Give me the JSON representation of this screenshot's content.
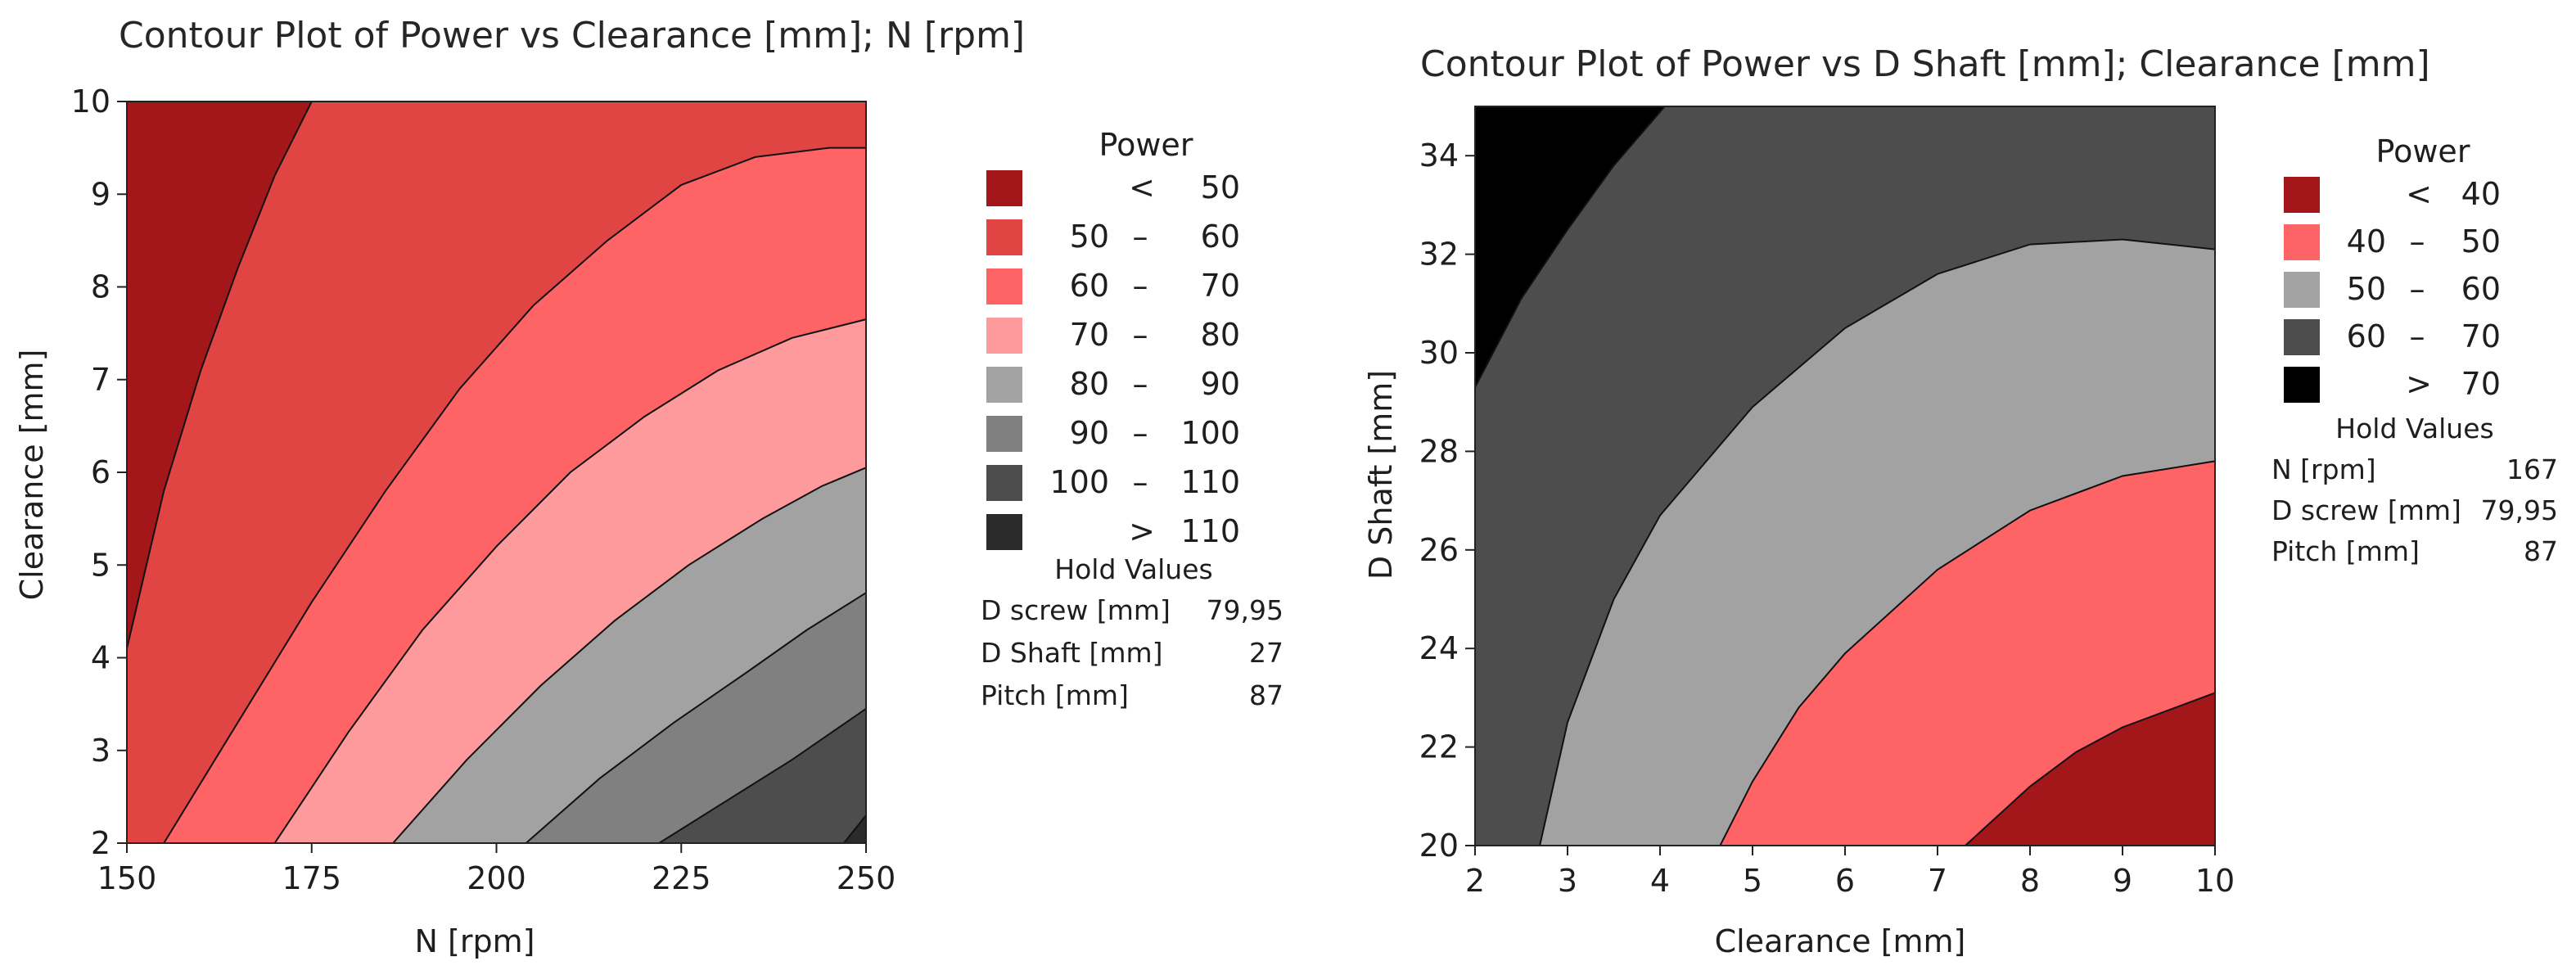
{
  "chart_data": [
    {
      "type": "contour",
      "title": "Contour Plot of Power vs Clearance [mm]; N [rpm]",
      "xlabel": "N [rpm]",
      "ylabel": "Clearance [mm]",
      "xlim": [
        150,
        250
      ],
      "ylim": [
        2,
        10
      ],
      "xticks": [
        "150",
        "175",
        "200",
        "225",
        "250"
      ],
      "yticks": [
        "2",
        "3",
        "4",
        "5",
        "6",
        "7",
        "8",
        "9",
        "10"
      ],
      "legend": {
        "title": "Power",
        "levels": [
          {
            "label": "<  50",
            "op": "<",
            "lo": "",
            "hi": "50",
            "color": "#a31619"
          },
          {
            "label": "50 – 60",
            "op": "",
            "lo": "50",
            "hi": "60",
            "color": "#e04544"
          },
          {
            "label": "60 – 70",
            "op": "",
            "lo": "60",
            "hi": "70",
            "color": "#fe6366"
          },
          {
            "label": "70 – 80",
            "op": "",
            "lo": "70",
            "hi": "80",
            "color": "#fe9a9c"
          },
          {
            "label": "80 – 90",
            "op": "",
            "lo": "80",
            "hi": "90",
            "color": "#a2a2a2"
          },
          {
            "label": "90 – 100",
            "op": "",
            "lo": "90",
            "hi": "100",
            "color": "#808080"
          },
          {
            "label": "100 – 110",
            "op": "",
            "lo": "100",
            "hi": "110",
            "color": "#4d4d4d"
          },
          {
            "label": ">  110",
            "op": ">",
            "lo": "",
            "hi": "110",
            "color": "#2b2b2b"
          }
        ]
      },
      "hold_values": {
        "title": "Hold Values",
        "rows": [
          {
            "name": "D screw [mm]",
            "value": "79,95"
          },
          {
            "name": "D Shaft [mm]",
            "value": "27"
          },
          {
            "name": "Pitch [mm]",
            "value": "87"
          }
        ]
      },
      "contours": [
        {
          "level": 50,
          "points": [
            [
              150,
              4.1
            ],
            [
              155,
              5.8
            ],
            [
              160,
              7.1
            ],
            [
              165,
              8.2
            ],
            [
              170,
              9.2
            ],
            [
              175,
              10
            ]
          ]
        },
        {
          "level": 60,
          "points": [
            [
              155,
              2
            ],
            [
              165,
              3.3
            ],
            [
              175,
              4.6
            ],
            [
              185,
              5.8
            ],
            [
              195,
              6.9
            ],
            [
              205,
              7.8
            ],
            [
              215,
              8.5
            ],
            [
              225,
              9.1
            ],
            [
              235,
              9.4
            ],
            [
              245,
              9.5
            ],
            [
              250,
              9.5
            ]
          ]
        },
        {
          "level": 70,
          "points": [
            [
              170,
              2
            ],
            [
              180,
              3.2
            ],
            [
              190,
              4.3
            ],
            [
              200,
              5.2
            ],
            [
              210,
              6
            ],
            [
              220,
              6.6
            ],
            [
              230,
              7.1
            ],
            [
              240,
              7.45
            ],
            [
              250,
              7.65
            ]
          ]
        },
        {
          "level": 80,
          "points": [
            [
              186,
              2
            ],
            [
              196,
              2.9
            ],
            [
              206,
              3.7
            ],
            [
              216,
              4.4
            ],
            [
              226,
              5
            ],
            [
              236,
              5.5
            ],
            [
              244,
              5.85
            ],
            [
              250,
              6.05
            ]
          ]
        },
        {
          "level": 90,
          "points": [
            [
              204,
              2
            ],
            [
              214,
              2.7
            ],
            [
              224,
              3.3
            ],
            [
              234,
              3.85
            ],
            [
              242,
              4.3
            ],
            [
              250,
              4.7
            ]
          ]
        },
        {
          "level": 100,
          "points": [
            [
              222,
              2
            ],
            [
              232,
              2.5
            ],
            [
              240,
              2.9
            ],
            [
              250,
              3.45
            ]
          ]
        },
        {
          "level": 110,
          "points": [
            [
              247,
              2
            ],
            [
              250,
              2.3
            ]
          ]
        }
      ]
    },
    {
      "type": "contour",
      "title": "Contour Plot of Power vs D Shaft [mm]; Clearance [mm]",
      "xlabel": "Clearance [mm]",
      "ylabel": "D Shaft [mm]",
      "xlim": [
        2,
        10
      ],
      "ylim": [
        20,
        35
      ],
      "xticks": [
        "2",
        "3",
        "4",
        "5",
        "6",
        "7",
        "8",
        "9",
        "10"
      ],
      "yticks": [
        "20",
        "22",
        "24",
        "26",
        "28",
        "30",
        "32",
        "34"
      ],
      "legend": {
        "title": "Power",
        "levels": [
          {
            "label": "<  40",
            "op": "<",
            "lo": "",
            "hi": "40",
            "color": "#a31619"
          },
          {
            "label": "40 – 50",
            "op": "",
            "lo": "40",
            "hi": "50",
            "color": "#fe6366"
          },
          {
            "label": "50 – 60",
            "op": "",
            "lo": "50",
            "hi": "60",
            "color": "#a2a2a2"
          },
          {
            "label": "60 – 70",
            "op": "",
            "lo": "60",
            "hi": "70",
            "color": "#4d4d4d"
          },
          {
            "label": ">  70",
            "op": ">",
            "lo": "",
            "hi": "70",
            "color": "#000000"
          }
        ]
      },
      "hold_values": {
        "title": "Hold Values",
        "rows": [
          {
            "name": "N [rpm]",
            "value": "167"
          },
          {
            "name": "D screw [mm]",
            "value": "79,95"
          },
          {
            "name": "Pitch [mm]",
            "value": "87"
          }
        ]
      },
      "contours": [
        {
          "level": 70,
          "points": [
            [
              2,
              29.3
            ],
            [
              2.5,
              31.1
            ],
            [
              3,
              32.5
            ],
            [
              3.5,
              33.8
            ],
            [
              4.05,
              35
            ]
          ]
        },
        {
          "level": 60,
          "points": [
            [
              2.7,
              20
            ],
            [
              3,
              22.5
            ],
            [
              3.5,
              25
            ],
            [
              4,
              26.7
            ],
            [
              5,
              28.9
            ],
            [
              6,
              30.5
            ],
            [
              7,
              31.6
            ],
            [
              8,
              32.2
            ],
            [
              9,
              32.3
            ],
            [
              10,
              32.1
            ]
          ]
        },
        {
          "level": 50,
          "points": [
            [
              4.65,
              20
            ],
            [
              5,
              21.3
            ],
            [
              5.5,
              22.8
            ],
            [
              6,
              23.9
            ],
            [
              7,
              25.6
            ],
            [
              8,
              26.8
            ],
            [
              9,
              27.5
            ],
            [
              10,
              27.8
            ]
          ]
        },
        {
          "level": 40,
          "points": [
            [
              7.3,
              20
            ],
            [
              8,
              21.2
            ],
            [
              8.5,
              21.9
            ],
            [
              9,
              22.4
            ],
            [
              10,
              23.1
            ]
          ]
        }
      ]
    }
  ]
}
